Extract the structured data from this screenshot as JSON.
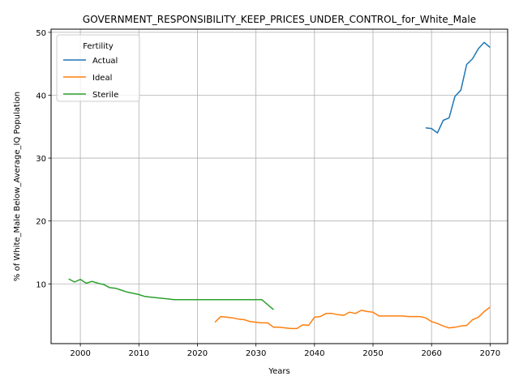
{
  "chart_data": {
    "type": "line",
    "title": "GOVERNMENT_RESPONSIBILITY_KEEP_PRICES_UNDER_CONTROL_for_White_Male",
    "xlabel": "Years",
    "ylabel": "% of White_Male Below_Average_IQ Population",
    "xlim": [
      1995,
      2073
    ],
    "ylim": [
      0.5,
      50.5
    ],
    "xticks": [
      2000,
      2010,
      2020,
      2030,
      2040,
      2050,
      2060,
      2070
    ],
    "yticks": [
      10,
      20,
      30,
      40,
      50
    ],
    "grid": true,
    "legend": {
      "title": "Fertility",
      "placement": "top-left"
    },
    "series": [
      {
        "name": "Actual",
        "color": "#1f77b4",
        "x": [
          2059,
          2060,
          2061,
          2062,
          2063,
          2064,
          2065,
          2066,
          2067,
          2068,
          2069,
          2070
        ],
        "y": [
          34.8,
          34.7,
          34.0,
          36.0,
          36.4,
          39.8,
          40.8,
          44.9,
          45.8,
          47.4,
          48.4,
          47.6
        ]
      },
      {
        "name": "Ideal",
        "color": "#ff7f0e",
        "x": [
          2023,
          2024,
          2025,
          2026,
          2027,
          2028,
          2029,
          2030,
          2031,
          2032,
          2033,
          2034,
          2035,
          2036,
          2037,
          2038,
          2039,
          2040,
          2041,
          2042,
          2043,
          2044,
          2045,
          2046,
          2047,
          2048,
          2049,
          2050,
          2051,
          2052,
          2053,
          2054,
          2055,
          2056,
          2057,
          2058,
          2059,
          2060,
          2061,
          2062,
          2063,
          2064,
          2065,
          2066,
          2067,
          2068,
          2069,
          2070
        ],
        "y": [
          3.9,
          4.8,
          4.7,
          4.6,
          4.4,
          4.3,
          4.0,
          3.9,
          3.8,
          3.8,
          3.1,
          3.1,
          3.0,
          2.9,
          2.9,
          3.5,
          3.4,
          4.7,
          4.8,
          5.3,
          5.3,
          5.1,
          5.0,
          5.5,
          5.3,
          5.8,
          5.6,
          5.5,
          4.9,
          4.9,
          4.9,
          4.9,
          4.9,
          4.8,
          4.8,
          4.8,
          4.6,
          4.0,
          3.7,
          3.3,
          3.0,
          3.1,
          3.3,
          3.4,
          4.3,
          4.7,
          5.6,
          6.3
        ]
      },
      {
        "name": "Sterile",
        "color": "#2ca02c",
        "x": [
          1998,
          1999,
          2000,
          2001,
          2002,
          2003,
          2004,
          2005,
          2006,
          2007,
          2008,
          2009,
          2010,
          2011,
          2012,
          2013,
          2014,
          2015,
          2016,
          2017,
          2018,
          2019,
          2020,
          2021,
          2022,
          2023,
          2024,
          2025,
          2026,
          2027,
          2028,
          2029,
          2030,
          2031,
          2032,
          2033
        ],
        "y": [
          10.8,
          10.3,
          10.7,
          10.1,
          10.4,
          10.1,
          9.9,
          9.4,
          9.3,
          9.0,
          8.7,
          8.5,
          8.3,
          8.0,
          7.9,
          7.8,
          7.7,
          7.6,
          7.5,
          7.5,
          7.5,
          7.5,
          7.5,
          7.5,
          7.5,
          7.5,
          7.5,
          7.5,
          7.5,
          7.5,
          7.5,
          7.5,
          7.5,
          7.5,
          6.7,
          5.9
        ]
      }
    ]
  }
}
